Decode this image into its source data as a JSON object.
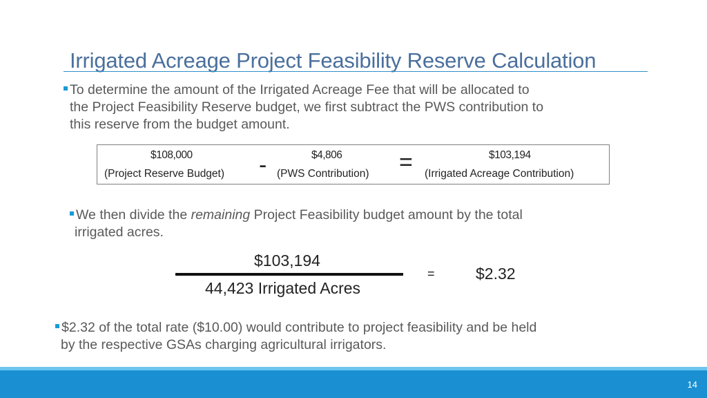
{
  "slide": {
    "title": "Irrigated Acreage Project Feasibility Reserve Calculation",
    "bullet1": {
      "line1": "To determine the amount of the Irrigated Acreage Fee that will be allocated to",
      "line2": "the Project Feasibility Reserve budget, we first subtract the PWS contribution to",
      "line3": "this reserve from the budget amount."
    },
    "subtraction": {
      "budget_value": "$108,000",
      "budget_label": "(Project Reserve Budget)",
      "minus": "-",
      "pws_value": "$4,806",
      "pws_label": "(PWS Contribution)",
      "equals": "=",
      "irrigated_value": "$103,194",
      "irrigated_label": "(Irrigated Acreage Contribution)"
    },
    "bullet2": {
      "pre": "We then divide the ",
      "emphasis": "remaining",
      "post": " Project Feasibility budget amount by the total",
      "line2": "irrigated acres."
    },
    "division": {
      "numerator": "$103,194",
      "denominator": "44,423 Irrigated Acres",
      "equals": "=",
      "result": "$2.32"
    },
    "bullet3": {
      "line1": "$2.32 of the total rate ($10.00) would contribute to project feasibility and be held",
      "line2": "by the respective GSAs charging agricultural irrigators."
    },
    "page_number": "14",
    "colors": {
      "title": "#4a6f9c",
      "bullet_marker": "#1a9ad6",
      "footer_bar": "#1a8fd1",
      "footer_accent": "#6cc4ef"
    }
  }
}
